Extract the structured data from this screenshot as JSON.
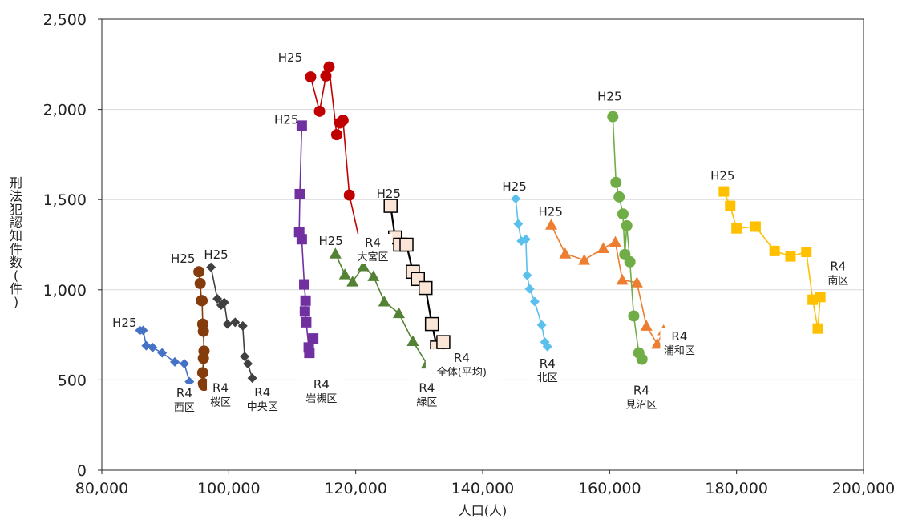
{
  "chart_data": {
    "type": "scatter",
    "xlabel": "人口(人)",
    "ylabel": "刑法犯認知件数(件)",
    "xlim": [
      80000,
      200000
    ],
    "ylim": [
      0,
      2500
    ],
    "xticks": [
      80000,
      100000,
      120000,
      140000,
      160000,
      180000,
      200000
    ],
    "xtick_labels": [
      "80,000",
      "100,000",
      "120,000",
      "140,000",
      "160,000",
      "180,000",
      "200,000"
    ],
    "yticks": [
      0,
      500,
      1000,
      1500,
      2000,
      2500
    ],
    "ytick_labels": [
      "0",
      "500",
      "1,000",
      "1,500",
      "2,000",
      "2,500"
    ],
    "grid": "horizontal",
    "start_label": "H25",
    "end_label": "R4",
    "series": [
      {
        "name": "西区",
        "color": "#4472c4",
        "marker": "diamond",
        "x": [
          86000,
          86500,
          87000,
          88000,
          89500,
          91500,
          93000,
          93800,
          94200
        ],
        "y": [
          775,
          775,
          690,
          680,
          650,
          600,
          590,
          490,
          450
        ]
      },
      {
        "name": "桜区",
        "color": "#843c0c",
        "marker": "circle",
        "x": [
          95300,
          95500,
          95700,
          95800,
          95900,
          96000,
          96100,
          96000,
          95900,
          96100,
          96000
        ],
        "y": [
          1100,
          1035,
          940,
          940,
          810,
          770,
          660,
          620,
          540,
          470,
          480
        ]
      },
      {
        "name": "中央区",
        "color": "#404040",
        "marker": "diamond",
        "x": [
          97200,
          98200,
          98800,
          99300,
          99800,
          101000,
          102200,
          102500,
          103000,
          103700
        ],
        "y": [
          1125,
          950,
          915,
          930,
          810,
          820,
          800,
          630,
          590,
          510
        ]
      },
      {
        "name": "岩槻区",
        "color": "#7030a0",
        "marker": "square",
        "x": [
          111500,
          111200,
          111100,
          111500,
          111900,
          112100,
          112000,
          112200,
          112600,
          112700,
          113300
        ],
        "y": [
          1910,
          1530,
          1320,
          1280,
          1030,
          940,
          880,
          820,
          680,
          650,
          730
        ]
      },
      {
        "name": "大宮区",
        "color": "#c00000",
        "marker": "circle",
        "x": [
          112900,
          114300,
          115300,
          115800,
          117000,
          117500,
          118000,
          119000,
          121000,
          123500
        ],
        "y": [
          2180,
          1990,
          2185,
          2235,
          1860,
          1925,
          1940,
          1525,
          1210,
          1210
        ]
      },
      {
        "name": "全体(平均)",
        "color": "#000000",
        "fill": "#fbe5d6",
        "marker": "square",
        "x": [
          125500,
          126200,
          127000,
          128000,
          129000,
          129800,
          131000,
          132000,
          132800,
          133800
        ],
        "y": [
          1465,
          1290,
          1250,
          1250,
          1100,
          1060,
          1010,
          810,
          680,
          710
        ]
      },
      {
        "name": "緑区",
        "color": "#548235",
        "marker": "triangle",
        "x": [
          116800,
          118300,
          119500,
          121200,
          122800,
          124500,
          126800,
          129000,
          131200,
          132200
        ],
        "y": [
          1200,
          1085,
          1045,
          1130,
          1075,
          935,
          870,
          715,
          590,
          640
        ]
      },
      {
        "name": "北区",
        "color": "#5bc0eb",
        "marker": "diamond",
        "x": [
          145200,
          145600,
          146100,
          146800,
          147000,
          147400,
          148200,
          149300,
          149800,
          150200
        ],
        "y": [
          1505,
          1365,
          1270,
          1280,
          1080,
          1005,
          935,
          805,
          710,
          685
        ]
      },
      {
        "name": "浦和区",
        "color": "#ed7d31",
        "marker": "triangle",
        "x": [
          150800,
          153000,
          156000,
          159000,
          160900,
          162000,
          164300,
          165800,
          167500,
          168500
        ],
        "y": [
          1360,
          1200,
          1165,
          1230,
          1265,
          1055,
          1040,
          800,
          700,
          775
        ]
      },
      {
        "name": "見沼区",
        "color": "#70ad47",
        "marker": "circle",
        "x": [
          160500,
          161000,
          161500,
          162100,
          162400,
          162700,
          163200,
          163800,
          164600,
          165100
        ],
        "y": [
          1960,
          1595,
          1515,
          1420,
          1195,
          1355,
          1155,
          855,
          650,
          615
        ]
      },
      {
        "name": "南区",
        "color": "#ffc000",
        "marker": "square",
        "x": [
          178000,
          179000,
          180000,
          183000,
          186000,
          188500,
          191000,
          192000,
          192800,
          193200
        ],
        "y": [
          1545,
          1465,
          1340,
          1350,
          1215,
          1185,
          1210,
          945,
          785,
          960
        ]
      }
    ],
    "annotations": [
      {
        "text": "H25",
        "x": 85500,
        "y": 795,
        "anchor": "end"
      },
      {
        "text": "H25",
        "x": 94700,
        "y": 1150,
        "anchor": "end"
      },
      {
        "text": "H25",
        "x": 98000,
        "y": 1172,
        "anchor": "middle"
      },
      {
        "text": "H25",
        "x": 111000,
        "y": 1920,
        "anchor": "end"
      },
      {
        "text": "H25",
        "x": 111600,
        "y": 2265,
        "anchor": "end"
      },
      {
        "text": "H25",
        "x": 125200,
        "y": 1510,
        "anchor": "middle"
      },
      {
        "text": "H25",
        "x": 118000,
        "y": 1248,
        "anchor": "end"
      },
      {
        "text": "H25",
        "x": 145000,
        "y": 1550,
        "anchor": "middle"
      },
      {
        "text": "H25",
        "x": 150700,
        "y": 1410,
        "anchor": "middle"
      },
      {
        "text": "H25",
        "x": 160000,
        "y": 2050,
        "anchor": "middle"
      },
      {
        "text": "H25",
        "x": 177800,
        "y": 1610,
        "anchor": "middle"
      }
    ],
    "end_annotations": [
      {
        "region": "西区",
        "x": 93000,
        "y": 395
      },
      {
        "region": "桜区",
        "x": 98700,
        "y": 425
      },
      {
        "region": "中央区",
        "x": 105300,
        "y": 400
      },
      {
        "region": "岩槻区",
        "x": 114600,
        "y": 445
      },
      {
        "region": "大宮区",
        "x": 122700,
        "y": 1230
      },
      {
        "region": "全体(平均)",
        "x": 136700,
        "y": 590
      },
      {
        "region": "緑区",
        "x": 131200,
        "y": 425
      },
      {
        "region": "北区",
        "x": 150200,
        "y": 560
      },
      {
        "region": "浦和区",
        "x": 171000,
        "y": 710
      },
      {
        "region": "見沼区",
        "x": 165000,
        "y": 410
      },
      {
        "region": "南区",
        "x": 196000,
        "y": 1100
      }
    ]
  }
}
